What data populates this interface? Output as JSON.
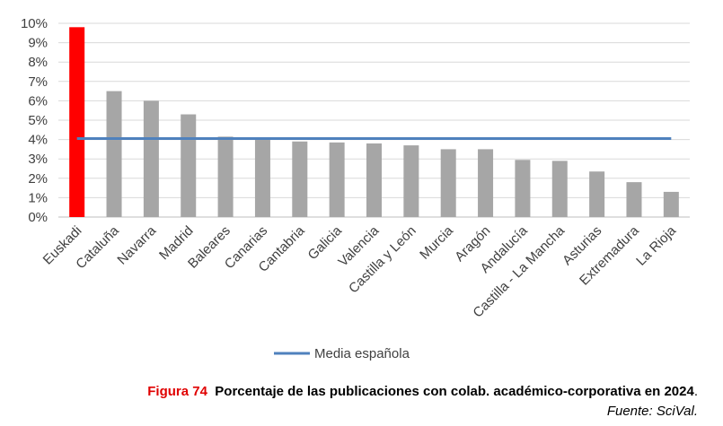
{
  "chart_data": {
    "type": "bar",
    "categories": [
      "Euskadi",
      "Cataluña",
      "Navarra",
      "Madrid",
      "Baleares",
      "Canarias",
      "Cantabria",
      "Galicia",
      "Valencia",
      "Castilla y León",
      "Murcia",
      "Aragón",
      "Andalucía",
      "Castilla - La Mancha",
      "Asturias",
      "Extremadura",
      "La Rioja"
    ],
    "values": [
      9.8,
      6.5,
      6.0,
      5.3,
      4.15,
      4.05,
      3.9,
      3.85,
      3.8,
      3.7,
      3.5,
      3.5,
      2.95,
      2.9,
      2.35,
      1.8,
      1.3
    ],
    "highlight_index": 0,
    "highlight_color": "#ff0000",
    "bar_color": "#a6a6a6",
    "average": {
      "name": "Media española",
      "value": 4.05,
      "color": "#4f81bd"
    },
    "ylim": [
      0,
      10
    ],
    "yticks": [
      "0%",
      "1%",
      "2%",
      "3%",
      "4%",
      "5%",
      "6%",
      "7%",
      "8%",
      "9%",
      "10%"
    ],
    "grid": true,
    "legend_position": "bottom"
  },
  "caption": {
    "label": "Figura 74",
    "title": "Porcentaje de las publicaciones con colab. académico-corporativa en 2024",
    "end": ".",
    "source": "Fuente: SciVal."
  }
}
